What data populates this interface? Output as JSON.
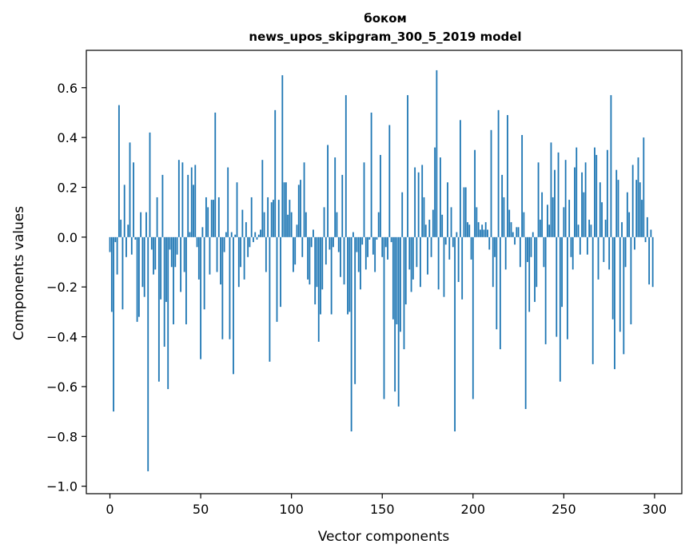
{
  "chart_data": {
    "type": "bar",
    "title": "боком",
    "subtitle": "news_upos_skipgram_300_5_2019 model",
    "xlabel": "Vector components",
    "ylabel": "Components values",
    "xlim": [
      -13,
      315
    ],
    "ylim": [
      -1.03,
      0.75
    ],
    "x_ticks": [
      0,
      50,
      100,
      150,
      200,
      250,
      300
    ],
    "y_ticks": [
      -1.0,
      -0.8,
      -0.6,
      -0.4,
      -0.2,
      0.0,
      0.2,
      0.4,
      0.6
    ],
    "y_tick_labels": [
      "−1.0",
      "−0.8",
      "−0.6",
      "−0.4",
      "−0.2",
      "0.0",
      "0.2",
      "0.4",
      "0.6"
    ],
    "bar_color": "#1f77b4",
    "grid": false,
    "x": "0..299 (component index)",
    "values": [
      -0.06,
      -0.3,
      -0.7,
      -0.02,
      -0.15,
      0.53,
      0.07,
      -0.29,
      0.21,
      -0.08,
      0.05,
      0.38,
      -0.07,
      0.3,
      -0.01,
      -0.34,
      -0.32,
      0.1,
      -0.2,
      -0.24,
      0.1,
      -0.94,
      0.42,
      -0.05,
      -0.15,
      -0.13,
      0.16,
      -0.58,
      -0.25,
      0.25,
      -0.44,
      -0.26,
      -0.61,
      -0.05,
      -0.12,
      -0.35,
      -0.12,
      -0.07,
      0.31,
      -0.22,
      0.3,
      -0.14,
      -0.35,
      0.25,
      0.02,
      0.28,
      0.21,
      0.29,
      -0.04,
      -0.17,
      -0.49,
      0.04,
      -0.29,
      0.16,
      0.12,
      -0.15,
      0.15,
      0.15,
      0.5,
      -0.14,
      0.16,
      -0.19,
      -0.41,
      -0.06,
      0.02,
      0.28,
      -0.41,
      0.02,
      -0.55,
      0.01,
      0.22,
      -0.2,
      -0.12,
      0.11,
      -0.17,
      0.06,
      -0.08,
      -0.04,
      0.16,
      -0.02,
      0.02,
      -0.01,
      0.01,
      0.03,
      0.31,
      0.1,
      -0.14,
      0.16,
      -0.5,
      0.14,
      0.15,
      0.51,
      -0.34,
      0.15,
      -0.28,
      0.65,
      0.22,
      0.22,
      0.09,
      0.15,
      0.1,
      -0.14,
      -0.11,
      0.05,
      0.21,
      0.23,
      -0.08,
      0.3,
      0.1,
      -0.17,
      -0.19,
      -0.04,
      0.03,
      -0.27,
      -0.2,
      -0.42,
      -0.31,
      -0.21,
      0.12,
      -0.11,
      0.37,
      -0.05,
      -0.31,
      -0.04,
      0.32,
      0.1,
      -0.06,
      -0.16,
      0.25,
      -0.19,
      0.57,
      -0.31,
      -0.3,
      -0.78,
      0.02,
      -0.59,
      -0.06,
      -0.14,
      -0.21,
      -0.03,
      0.3,
      -0.13,
      -0.08,
      -0.01,
      0.5,
      -0.07,
      -0.14,
      -0.01,
      0.1,
      0.33,
      -0.08,
      -0.65,
      -0.04,
      -0.09,
      0.45,
      -0.02,
      -0.33,
      -0.62,
      -0.35,
      -0.68,
      -0.38,
      0.18,
      -0.45,
      -0.27,
      0.57,
      -0.13,
      -0.22,
      -0.17,
      0.28,
      -0.12,
      0.26,
      -0.2,
      0.29,
      0.16,
      0.05,
      -0.15,
      0.07,
      -0.08,
      0.11,
      0.36,
      0.67,
      -0.21,
      0.32,
      0.09,
      -0.24,
      -0.03,
      0.22,
      -0.09,
      0.12,
      -0.04,
      -0.78,
      0.02,
      -0.18,
      0.47,
      -0.25,
      0.2,
      0.2,
      0.06,
      0.05,
      -0.09,
      -0.65,
      0.35,
      0.12,
      0.06,
      0.03,
      0.05,
      0.03,
      0.06,
      0.03,
      -0.05,
      0.43,
      -0.2,
      -0.08,
      -0.37,
      0.51,
      -0.45,
      0.25,
      0.16,
      -0.13,
      0.49,
      0.11,
      0.06,
      0.02,
      -0.03,
      0.04,
      0.04,
      -0.12,
      0.41,
      0.1,
      -0.69,
      -0.1,
      -0.3,
      -0.08,
      0.02,
      -0.26,
      -0.2,
      0.3,
      0.07,
      0.18,
      -0.12,
      -0.43,
      0.13,
      0.05,
      0.38,
      0.16,
      0.27,
      -0.4,
      0.34,
      -0.58,
      -0.28,
      0.12,
      0.31,
      -0.41,
      0.15,
      -0.08,
      -0.13,
      0.28,
      0.36,
      0.05,
      -0.07,
      0.26,
      0.18,
      0.3,
      -0.07,
      0.07,
      0.05,
      -0.51,
      0.36,
      0.33,
      -0.17,
      0.22,
      0.14,
      -0.1,
      0.07,
      0.35,
      -0.13,
      0.57,
      -0.33,
      -0.53,
      0.27,
      0.23,
      -0.38,
      0.06,
      -0.47,
      -0.12,
      0.18,
      0.1,
      -0.35,
      0.29,
      -0.05,
      0.23,
      0.32,
      0.22,
      0.15,
      0.4,
      -0.02,
      0.08,
      -0.19,
      0.03,
      -0.2
    ]
  }
}
